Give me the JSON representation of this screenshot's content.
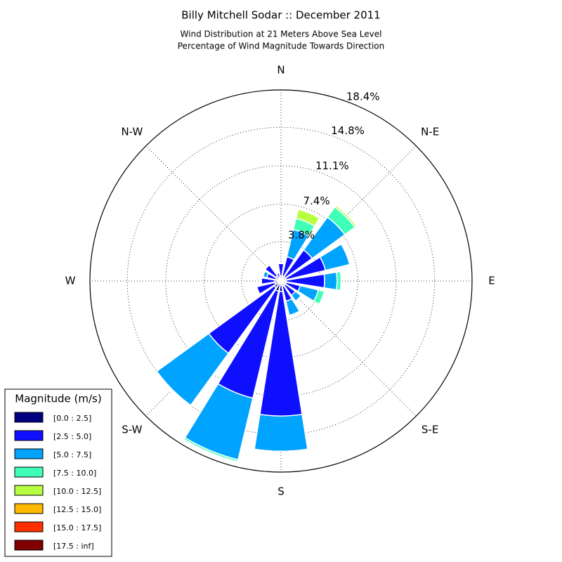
{
  "chart_data": {
    "type": "windrose",
    "title": "Billy Mitchell Sodar :: December 2011",
    "subtitle": [
      "Wind Distribution at 21 Meters Above Sea Level",
      "Percentage of Wind Magnitude Towards Direction"
    ],
    "categories": [
      "N",
      null,
      "N-E",
      null,
      "E",
      null,
      "S-E",
      null,
      "S",
      null,
      "S-W",
      null,
      "W",
      null,
      "N-W",
      null
    ],
    "rlim": [
      0,
      18.4
    ],
    "rticks": [
      {
        "value": 3.8,
        "label": "3.8%"
      },
      {
        "value": 7.4,
        "label": "7.4%"
      },
      {
        "value": 11.1,
        "label": "11.1%"
      },
      {
        "value": 14.8,
        "label": "14.8%"
      },
      {
        "value": 18.4,
        "label": "18.4%"
      }
    ],
    "grid": true,
    "legend": "lower left",
    "legend_title": "Magnitude (m/s)",
    "series": [
      {
        "name": "[0.0 : 2.5]",
        "color": "#000080",
        "values": [
          0.5,
          0.5,
          0.5,
          0.5,
          0.5,
          0.5,
          0.5,
          0.5,
          1.0,
          1.0,
          0.8,
          0.6,
          0.6,
          0.5,
          0.6,
          0.4
        ]
      },
      {
        "name": "[2.5 : 5.0]",
        "color": "#0f0fff",
        "values": [
          1.2,
          1.9,
          3.2,
          3.9,
          3.7,
          1.4,
          1.2,
          1.5,
          12.0,
          10.6,
          7.8,
          1.8,
          1.3,
          0.9,
          1.3,
          0.4
        ]
      },
      {
        "name": "[5.0 : 7.5]",
        "color": "#00a4ff",
        "values": [
          0,
          2.7,
          3.9,
          2.4,
          1.2,
          1.8,
          0.7,
          1.4,
          3.4,
          6.1,
          6.2,
          0,
          0,
          0.4,
          0,
          0
        ]
      },
      {
        "name": "[7.5 : 10.0]",
        "color": "#40ffb7",
        "values": [
          0,
          1.1,
          1.2,
          0.1,
          0.4,
          0.6,
          0,
          0.1,
          0,
          0.2,
          0.1,
          0,
          0,
          0,
          0,
          0
        ]
      },
      {
        "name": "[10.0 : 12.5]",
        "color": "#b7ff40",
        "values": [
          0,
          0.9,
          0.2,
          0,
          0,
          0,
          0,
          0,
          0,
          0,
          0,
          0,
          0,
          0,
          0,
          0
        ]
      },
      {
        "name": "[12.5 : 15.0]",
        "color": "#ffb900",
        "values": [
          0,
          0,
          0,
          0,
          0,
          0,
          0,
          0,
          0,
          0,
          0,
          0,
          0,
          0,
          0,
          0
        ]
      },
      {
        "name": "[15.0 : 17.5]",
        "color": "#ff3000",
        "values": [
          0,
          0,
          0,
          0,
          0,
          0,
          0,
          0,
          0,
          0,
          0,
          0,
          0,
          0,
          0,
          0
        ]
      },
      {
        "name": "[17.5 : inf]",
        "color": "#800000",
        "values": [
          0,
          0,
          0,
          0,
          0,
          0,
          0,
          0,
          0,
          0,
          0,
          0,
          0,
          0,
          0,
          0
        ]
      }
    ]
  }
}
